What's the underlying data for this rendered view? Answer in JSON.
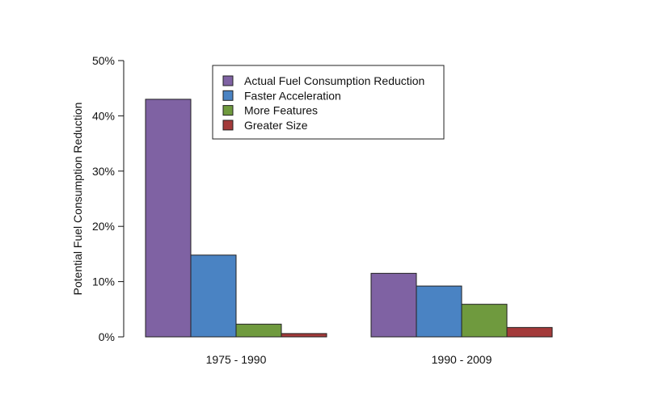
{
  "chart_data": {
    "type": "bar",
    "title": "",
    "xlabel": "",
    "ylabel": "Potential Fuel Consumption Reduction",
    "categories": [
      "1975 - 1990",
      "1990 - 2009"
    ],
    "series": [
      {
        "name": "Actual Fuel Consumption Reduction",
        "color": "#7f62a3",
        "values": [
          43,
          11.5
        ]
      },
      {
        "name": "Faster Acceleration",
        "color": "#4a83c3",
        "values": [
          14.8,
          9.2
        ]
      },
      {
        "name": "More Features",
        "color": "#6f9a3e",
        "values": [
          2.3,
          5.9
        ]
      },
      {
        "name": "Greater Size",
        "color": "#a33a3a",
        "values": [
          0.6,
          1.7
        ]
      }
    ],
    "ylim": [
      0,
      50
    ],
    "yticks": [
      0,
      10,
      20,
      30,
      40,
      50
    ],
    "ytick_labels": [
      "0%",
      "10%",
      "20%",
      "30%",
      "40%",
      "50%"
    ],
    "grid": false,
    "legend_position": "top-center"
  }
}
